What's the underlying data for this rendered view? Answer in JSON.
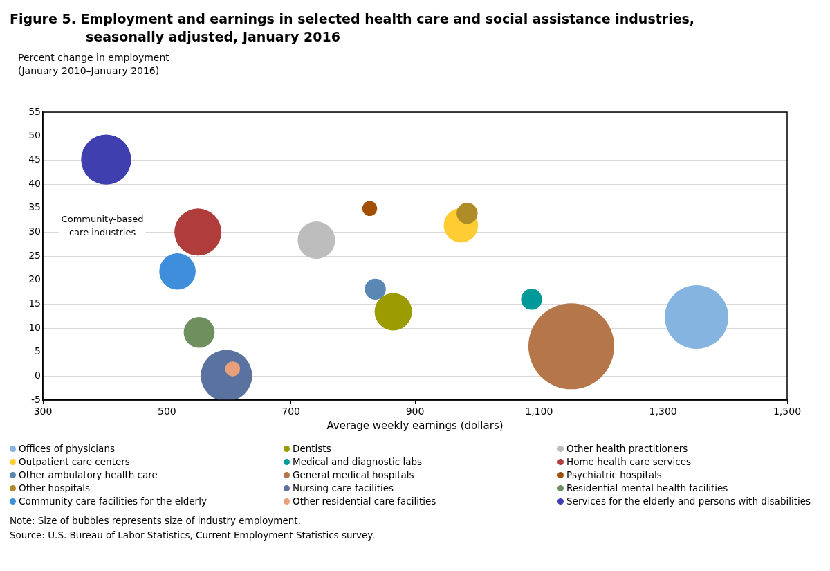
{
  "chart_data": {
    "type": "bubble",
    "title": "Figure 5. Employment and earnings in selected health care and social assistance industries, seasonally adjusted, January 2016",
    "xlabel": "Average weekly earnings (dollars)",
    "ylabel": "Percent change in employment\n(January 2010–January 2016)",
    "xlim": [
      300,
      1500
    ],
    "xticks": [
      300,
      500,
      700,
      900,
      {
        "value": 1100,
        "label": "1,100"
      },
      {
        "value": 1300,
        "label": "1,300"
      },
      {
        "value": 1500,
        "label": "1,500"
      }
    ],
    "ylim": [
      -5,
      55
    ],
    "yticks": [
      -5,
      0,
      5,
      10,
      15,
      20,
      25,
      30,
      35,
      40,
      45,
      50,
      55
    ],
    "grid": "y",
    "legend": "bottom",
    "marker": "circle",
    "series": [
      {
        "name": "Offices of physicians",
        "color": "#85b4e0",
        "x": [
          1354
        ],
        "values": [
          12.3
        ],
        "sizes": [
          0.55
        ]
      },
      {
        "name": "Dentists",
        "color": "#9c9c00",
        "x": [
          865
        ],
        "values": [
          13.4
        ],
        "sizes": [
          0.19
        ]
      },
      {
        "name": "Other health practitioners",
        "color": "#bdbdbd",
        "x": [
          741
        ],
        "values": [
          28.3
        ],
        "sizes": [
          0.19
        ]
      },
      {
        "name": "Outpatient care centers",
        "color": "#ffcc33",
        "x": [
          974
        ],
        "values": [
          31.4
        ],
        "sizes": [
          0.16
        ]
      },
      {
        "name": "Medical and diagnostic labs",
        "color": "#009999",
        "x": [
          1088
        ],
        "values": [
          16.0
        ],
        "sizes": [
          0.06
        ]
      },
      {
        "name": "Home health care services",
        "color": "#b03c3c",
        "x": [
          550
        ],
        "values": [
          30.0
        ],
        "sizes": [
          0.3
        ]
      },
      {
        "name": "Other ambulatory health care",
        "color": "#5b87b5",
        "x": [
          836
        ],
        "values": [
          18.1
        ],
        "sizes": [
          0.06
        ]
      },
      {
        "name": "General medical hospitals",
        "color": "#b5764a",
        "x": [
          1152
        ],
        "values": [
          6.2
        ],
        "sizes": [
          1
        ]
      },
      {
        "name": "Psychiatric hospitals",
        "color": "#a05000",
        "x": [
          827
        ],
        "values": [
          34.9
        ],
        "sizes": [
          0.03
        ]
      },
      {
        "name": "Other hospitals",
        "color": "#b08c28",
        "x": [
          984
        ],
        "values": [
          33.9
        ],
        "sizes": [
          0.06
        ]
      },
      {
        "name": "Nursing care facilities",
        "color": "#5a72a0",
        "x": [
          596
        ],
        "values": [
          0.1
        ],
        "sizes": [
          0.36
        ]
      },
      {
        "name": "Residential mental health facilities",
        "color": "#6f8f5f",
        "x": [
          552
        ],
        "values": [
          9.1
        ],
        "sizes": [
          0.13
        ]
      },
      {
        "name": "Community care facilities for the elderly",
        "color": "#3f8edb",
        "x": [
          517
        ],
        "values": [
          21.8
        ],
        "sizes": [
          0.18
        ]
      },
      {
        "name": "Other residential care facilities",
        "color": "#e8a07a",
        "x": [
          606
        ],
        "values": [
          1.5
        ],
        "sizes": [
          0.03
        ]
      },
      {
        "name": "Services for the elderly and persons with disabilities",
        "color": "#3f3fb0",
        "x": [
          402
        ],
        "values": [
          45.1
        ],
        "sizes": [
          0.34
        ]
      }
    ],
    "annotations": [
      "Community-based\ncare industries",
      "Note: Size of bubbles represents size of industry employment.",
      "Source: U.S. Bureau of Labor Statistics, Current Employment Statistics survey."
    ]
  }
}
